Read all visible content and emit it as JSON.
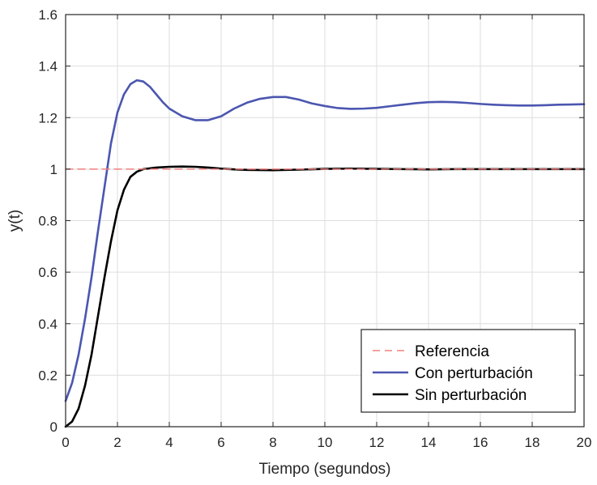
{
  "chart_data": {
    "type": "line",
    "xlabel": "Tiempo (segundos)",
    "ylabel": "y(t)",
    "xlim": [
      0,
      20
    ],
    "ylim": [
      0,
      1.6
    ],
    "xticks": [
      0,
      2,
      4,
      6,
      8,
      10,
      12,
      14,
      16,
      18,
      20
    ],
    "yticks": [
      0,
      0.2,
      0.4,
      0.6,
      0.8,
      1,
      1.2,
      1.4,
      1.6
    ],
    "xtick_labels": [
      "0",
      "2",
      "4",
      "6",
      "8",
      "10",
      "12",
      "14",
      "16",
      "18",
      "20"
    ],
    "ytick_labels": [
      "0",
      "0.2",
      "0.4",
      "0.6",
      "0.8",
      "1",
      "1.2",
      "1.4",
      "1.6"
    ],
    "grid": true,
    "legend_position": "bottom-right",
    "series": [
      {
        "name": "Referencia",
        "color": "#f08080",
        "style": "dashed",
        "x": [
          0,
          20
        ],
        "y": [
          1,
          1
        ]
      },
      {
        "name": "Con perturbación",
        "color": "#4b56b0",
        "style": "solid",
        "x": [
          0,
          0.25,
          0.5,
          0.75,
          1.0,
          1.25,
          1.5,
          1.75,
          2.0,
          2.25,
          2.5,
          2.75,
          3.0,
          3.25,
          3.5,
          3.75,
          4.0,
          4.5,
          5.0,
          5.5,
          6.0,
          6.5,
          7.0,
          7.5,
          8.0,
          8.5,
          9.0,
          9.5,
          10.0,
          10.5,
          11.0,
          11.5,
          12.0,
          12.5,
          13.0,
          13.5,
          14.0,
          14.5,
          15.0,
          15.5,
          16.0,
          16.5,
          17.0,
          17.5,
          18.0,
          18.5,
          19.0,
          19.5,
          20.0
        ],
        "y": [
          0.1,
          0.17,
          0.28,
          0.42,
          0.58,
          0.76,
          0.93,
          1.1,
          1.22,
          1.29,
          1.33,
          1.345,
          1.34,
          1.32,
          1.29,
          1.26,
          1.235,
          1.205,
          1.19,
          1.19,
          1.205,
          1.235,
          1.258,
          1.273,
          1.28,
          1.28,
          1.27,
          1.255,
          1.245,
          1.237,
          1.234,
          1.235,
          1.238,
          1.244,
          1.25,
          1.256,
          1.26,
          1.261,
          1.26,
          1.257,
          1.253,
          1.25,
          1.248,
          1.247,
          1.247,
          1.248,
          1.25,
          1.251,
          1.252
        ]
      },
      {
        "name": "Sin perturbación",
        "color": "#000000",
        "style": "solid",
        "x": [
          0,
          0.25,
          0.5,
          0.75,
          1.0,
          1.25,
          1.5,
          1.75,
          2.0,
          2.25,
          2.5,
          2.75,
          3.0,
          3.5,
          4.0,
          4.5,
          5.0,
          5.5,
          6.0,
          6.5,
          7.0,
          8.0,
          9.0,
          10.0,
          11.0,
          12.0,
          13.0,
          14.0,
          15.0,
          16.0,
          17.0,
          18.0,
          19.0,
          20.0
        ],
        "y": [
          0.0,
          0.02,
          0.07,
          0.16,
          0.28,
          0.43,
          0.58,
          0.72,
          0.84,
          0.92,
          0.97,
          0.99,
          1.0,
          1.006,
          1.009,
          1.01,
          1.009,
          1.006,
          1.002,
          0.999,
          0.997,
          0.996,
          0.998,
          1.001,
          1.002,
          1.001,
          1.0,
          0.999,
          1.0,
          1.0,
          1.0,
          1.0,
          1.0,
          1.0
        ]
      }
    ]
  }
}
